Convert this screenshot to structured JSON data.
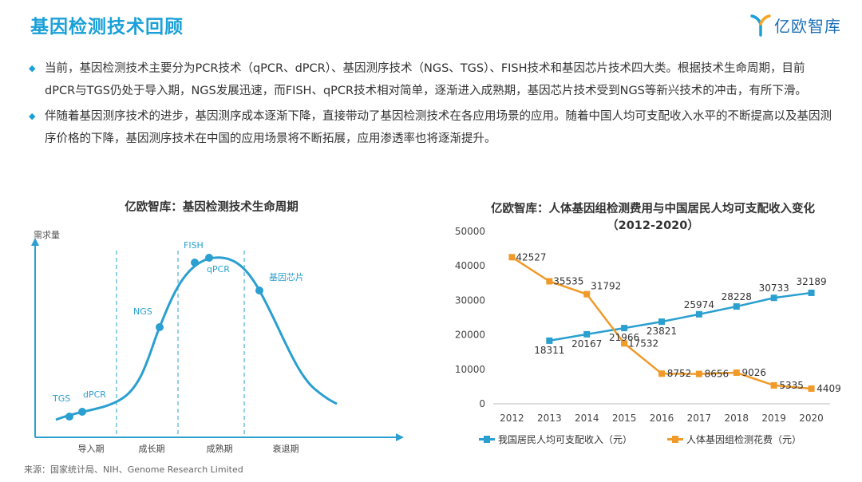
{
  "page": {
    "title": "基因检测技术回顾",
    "logo_text": "亿欧智库",
    "bullets": [
      "当前，基因检测技术主要分为PCR技术（qPCR、dPCR）、基因测序技术（NGS、TGS）、FISH技术和基因芯片技术四大类。根据技术生命周期，目前dPCR与TGS仍处于导入期，NGS发展迅速，而FISH、qPCR技术相对简单，逐渐进入成熟期，基因芯片技术受到NGS等新兴技术的冲击，有所下滑。",
      "伴随着基因测序技术的进步，基因测序成本逐渐下降，直接带动了基因检测技术在各应用场景的应用。随着中国人均可支配收入水平的不断提高以及基因测序价格的下降，基因测序技术在中国的应用场景将不断拓展，应用渗透率也将逐渐提升。"
    ],
    "source": "来源：国家统计局、NIH、Genome Research Limited",
    "colors": {
      "accent": "#1aa0d8",
      "blue_series": "#2a9fd0",
      "orange_series": "#f09a2a"
    }
  },
  "chart_data": [
    {
      "type": "line",
      "title": "亿欧智库：基因检测技术生命周期",
      "ylabel": "需求量",
      "categories": [
        "导入期",
        "成长期",
        "成熟期",
        "衰退期"
      ],
      "points": [
        {
          "label": "TGS"
        },
        {
          "label": "dPCR"
        },
        {
          "label": "NGS"
        },
        {
          "label": "FISH"
        },
        {
          "label": "qPCR"
        },
        {
          "label": "基因芯片"
        }
      ]
    },
    {
      "type": "line",
      "title": "亿欧智库：人体基因组检测费用与中国居民人均可支配收入变化",
      "subtitle": "（2012-2020）",
      "ylim": [
        0,
        50000
      ],
      "yticks": [
        0,
        10000,
        20000,
        30000,
        40000,
        50000
      ],
      "x": [
        2012,
        2013,
        2014,
        2015,
        2016,
        2017,
        2018,
        2019,
        2020
      ],
      "series": [
        {
          "name": "我国居民人均可支配收入（元）",
          "x": [
            2013,
            2014,
            2015,
            2016,
            2017,
            2018,
            2019,
            2020
          ],
          "values": [
            18311,
            20167,
            21966,
            23821,
            25974,
            28228,
            30733,
            32189
          ]
        },
        {
          "name": "人体基因组检测花费（元）",
          "x": [
            2012,
            2013,
            2014,
            2015,
            2016,
            2017,
            2018,
            2019,
            2020
          ],
          "values": [
            42527,
            35535,
            31792,
            17532,
            8752,
            8656,
            9026,
            5335,
            4409
          ]
        }
      ]
    }
  ]
}
